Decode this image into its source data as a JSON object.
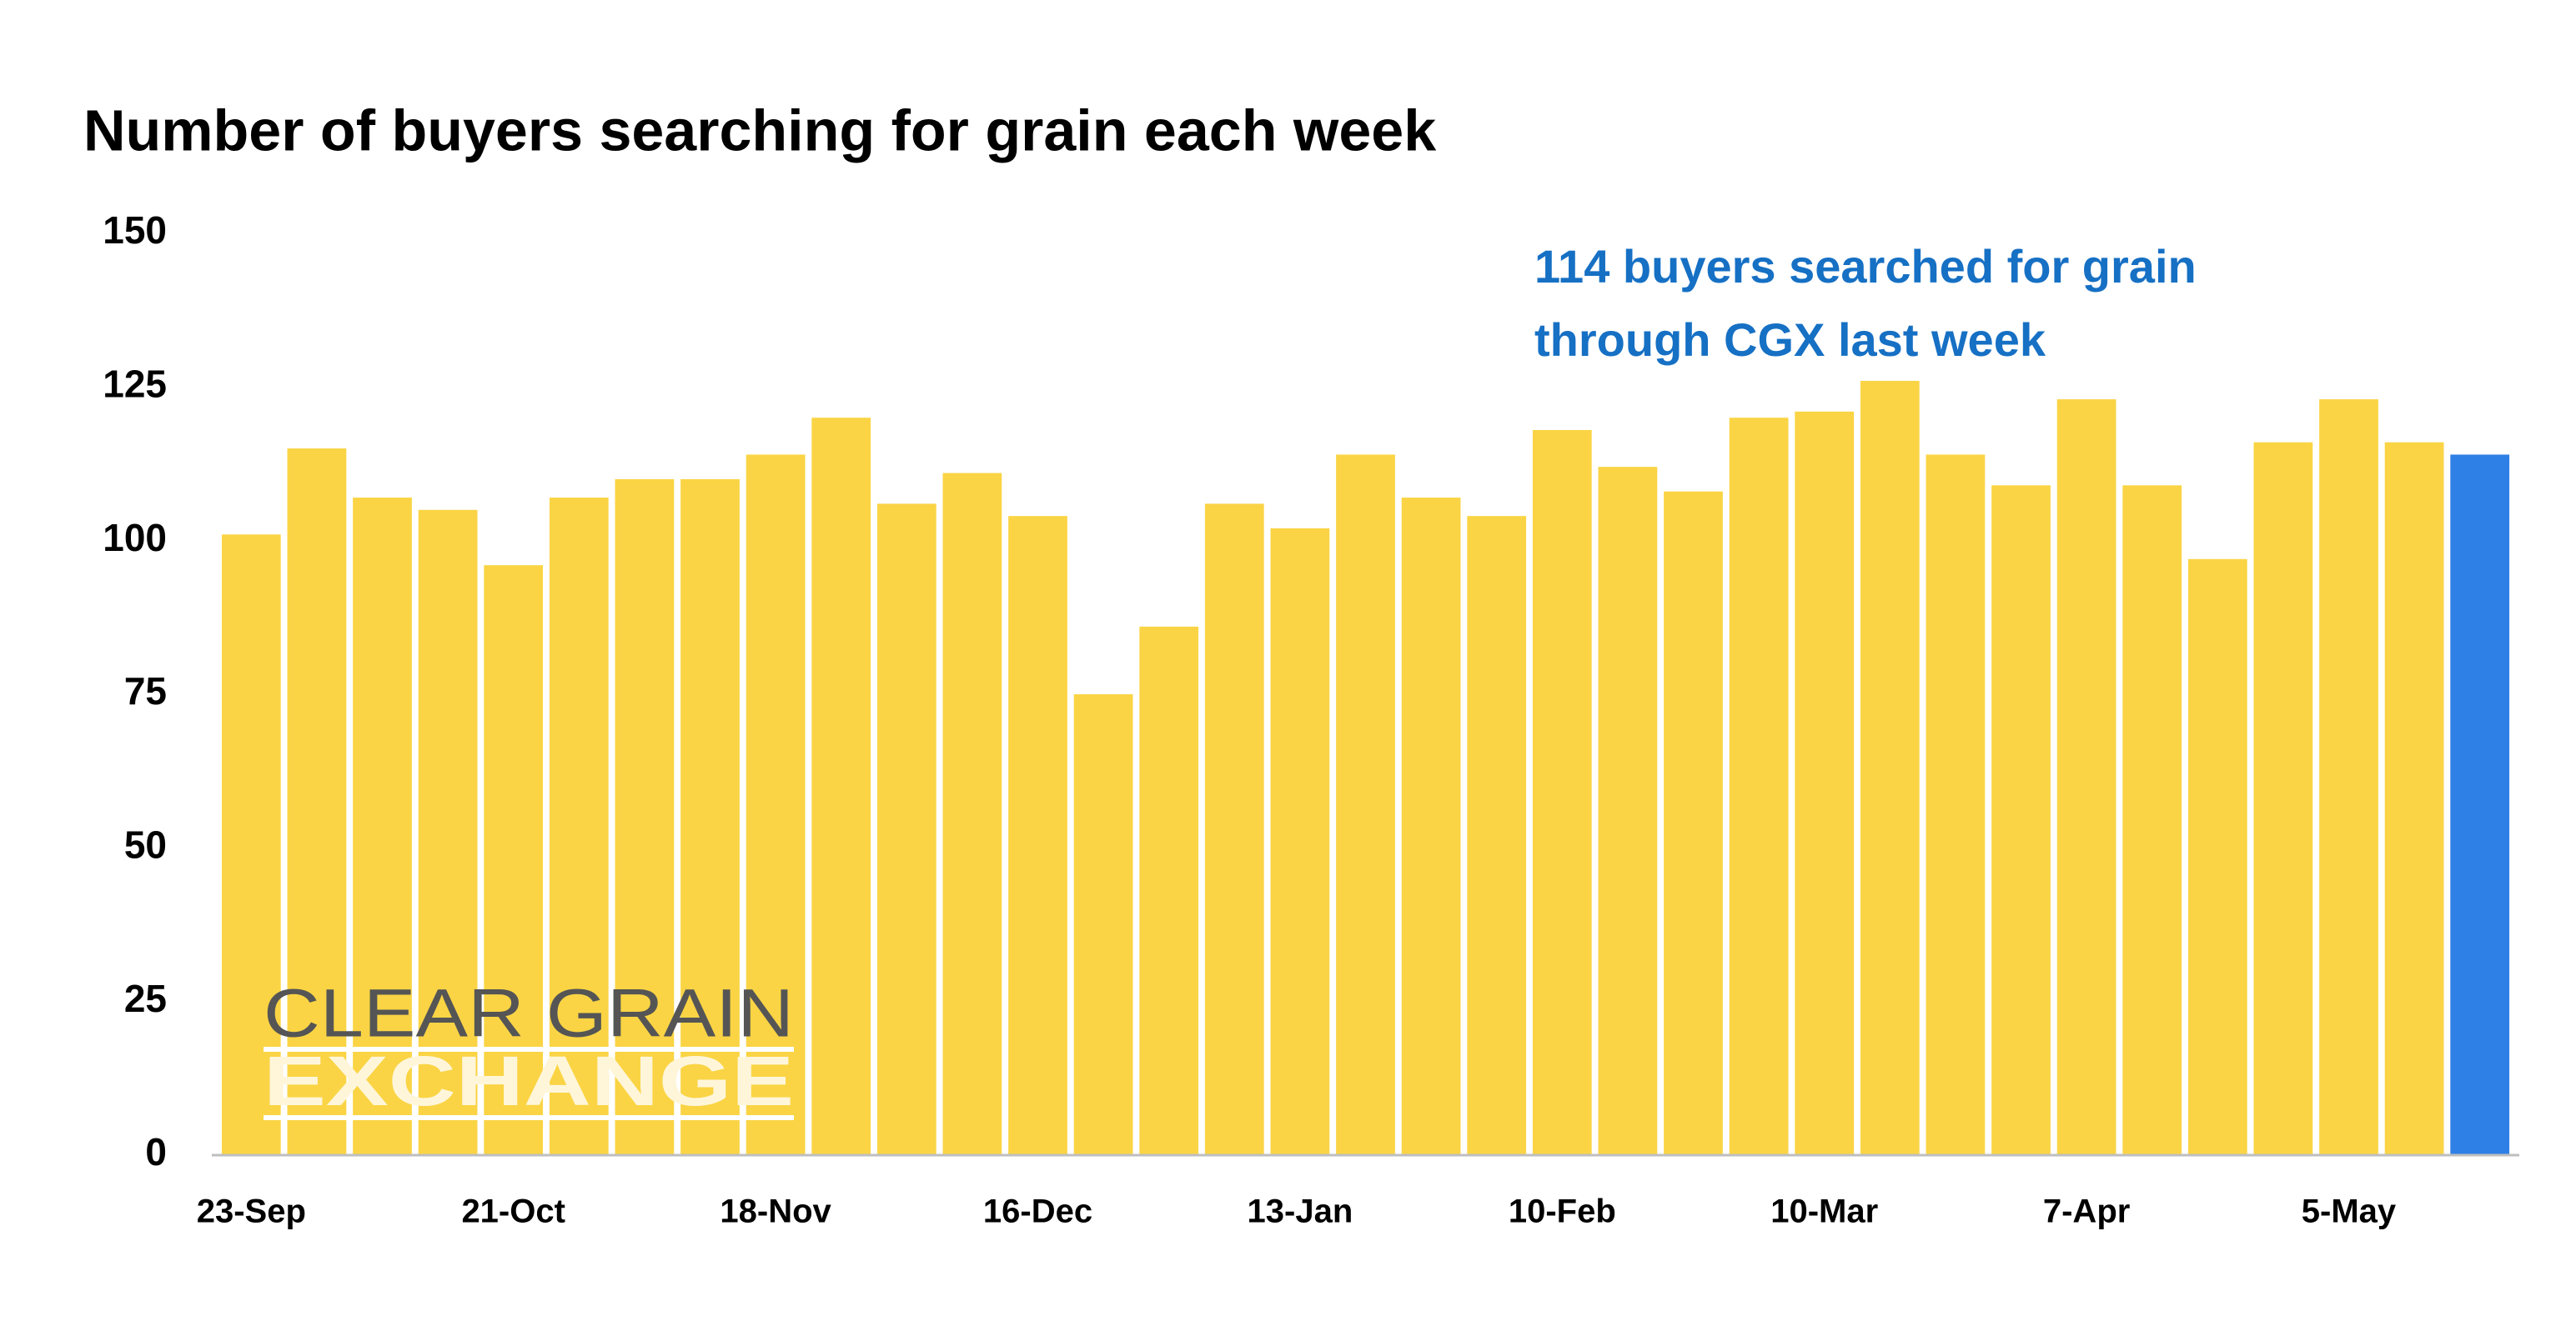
{
  "chart_data": {
    "type": "bar",
    "title": "Number of buyers searching for grain each week",
    "annotation": [
      "114 buyers searched for grain",
      "through CGX last week"
    ],
    "logo": [
      "CLEAR GRAIN",
      "EXCHANGE"
    ],
    "categories": [
      "23-Sep",
      null,
      null,
      null,
      "21-Oct",
      null,
      null,
      null,
      "18-Nov",
      null,
      null,
      null,
      "16-Dec",
      null,
      null,
      null,
      "13-Jan",
      null,
      null,
      null,
      "10-Feb",
      null,
      null,
      null,
      "10-Mar",
      null,
      null,
      null,
      "7-Apr",
      null,
      null,
      null,
      "5-May",
      null,
      null
    ],
    "values": [
      101,
      115,
      107,
      105,
      96,
      107,
      110,
      110,
      114,
      120,
      106,
      111,
      104,
      75,
      86,
      106,
      102,
      114,
      107,
      104,
      118,
      112,
      108,
      120,
      121,
      126,
      114,
      109,
      123,
      109,
      97,
      116,
      123,
      116,
      114
    ],
    "colors": [
      "#FAD444",
      "#FAD444",
      "#FAD444",
      "#FAD444",
      "#FAD444",
      "#FAD444",
      "#FAD444",
      "#FAD444",
      "#FAD444",
      "#FAD444",
      "#FAD444",
      "#FAD444",
      "#FAD444",
      "#FAD444",
      "#FAD444",
      "#FAD444",
      "#FAD444",
      "#FAD444",
      "#FAD444",
      "#FAD444",
      "#FAD444",
      "#FAD444",
      "#FAD444",
      "#FAD444",
      "#FAD444",
      "#FAD444",
      "#FAD444",
      "#FAD444",
      "#FAD444",
      "#FAD444",
      "#FAD444",
      "#FAD444",
      "#FAD444",
      "#FAD444",
      "#2F80E6"
    ],
    "ylim": [
      0,
      150
    ],
    "yticks": [
      0,
      25,
      50,
      75,
      100,
      125,
      150
    ],
    "grid": false
  }
}
